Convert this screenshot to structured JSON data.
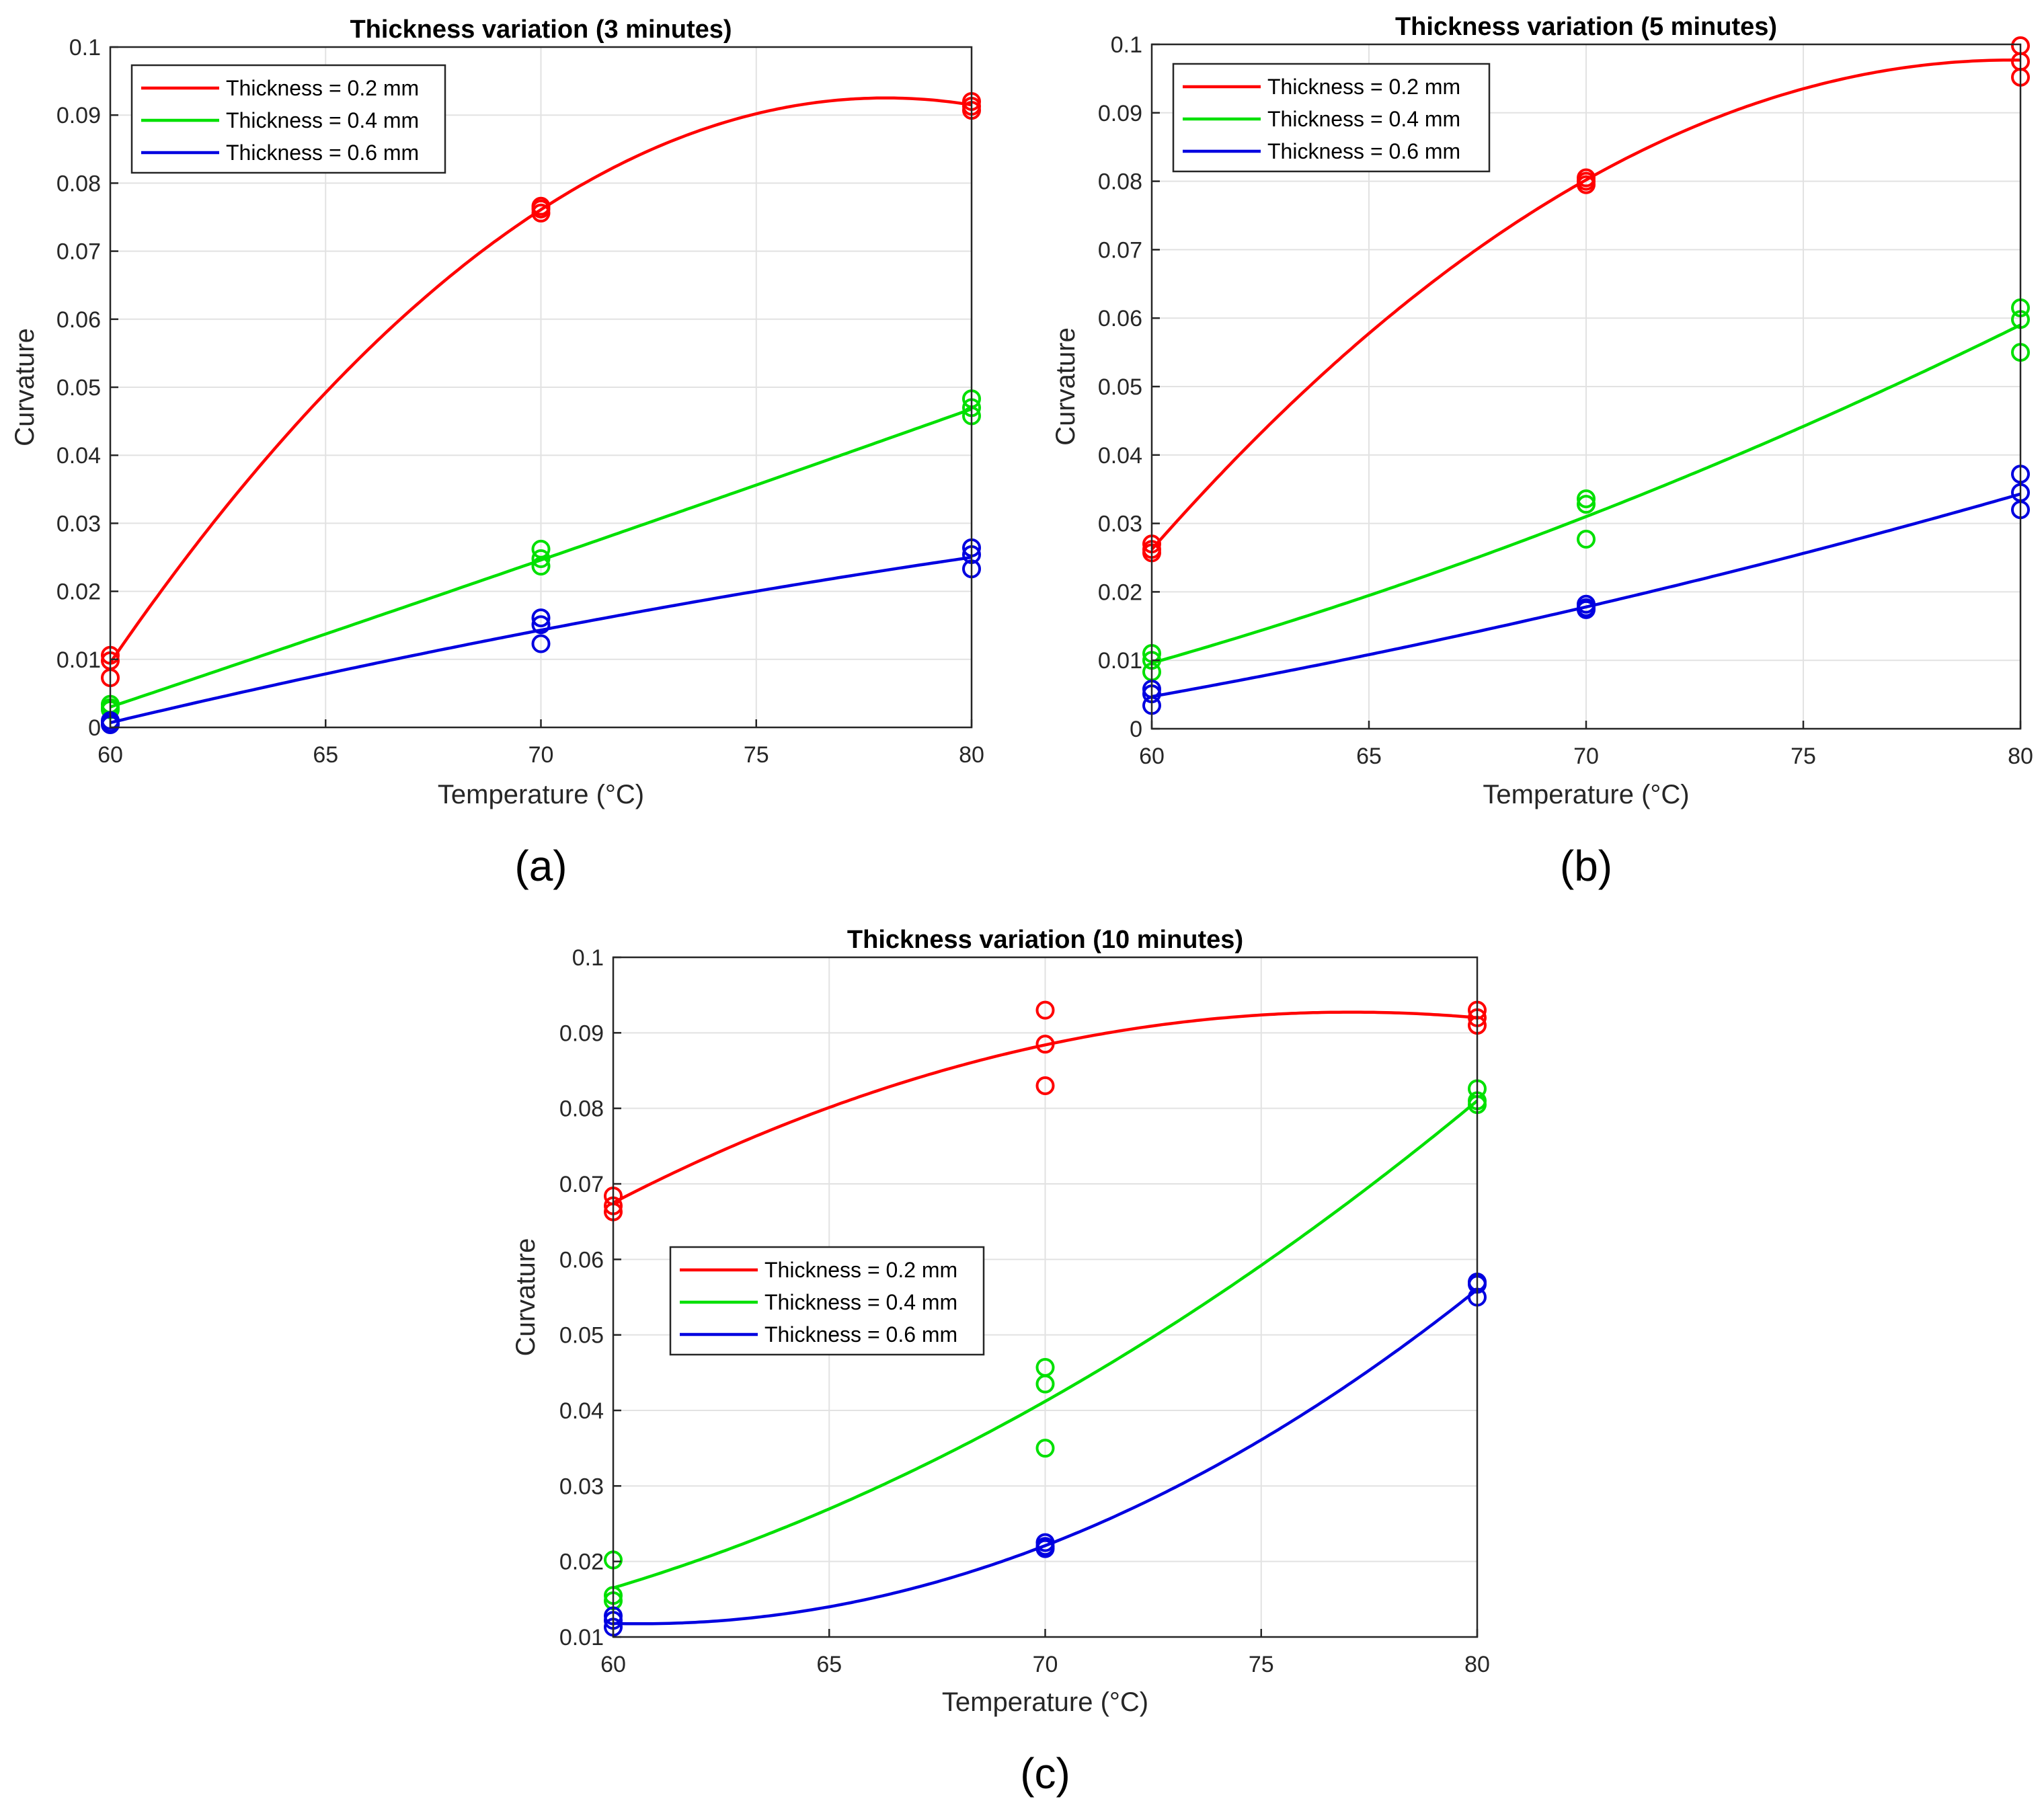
{
  "figure": {
    "panels": [
      "(a)",
      "(b)",
      "(c)"
    ]
  },
  "colors": {
    "t02": "#ff0000",
    "t04": "#00e000",
    "t06": "#0000e0",
    "grid": "#e2e2e2",
    "axis": "#262626"
  },
  "chart_data": [
    {
      "type": "line",
      "panel": "(a)",
      "title": "Thickness variation (3 minutes)",
      "xlabel": "Temperature (°C)",
      "ylabel": "Curvature",
      "xlim": [
        60,
        80
      ],
      "ylim": [
        0,
        0.1
      ],
      "xticks": [
        60,
        65,
        70,
        75,
        80
      ],
      "yticks": [
        0,
        0.01,
        0.02,
        0.03,
        0.04,
        0.05,
        0.06,
        0.07,
        0.08,
        0.09,
        0.1
      ],
      "ytick_labels": [
        "0",
        "0.01",
        "0.02",
        "0.03",
        "0.04",
        "0.05",
        "0.06",
        "0.07",
        "0.08",
        "0.09",
        "0.1"
      ],
      "grid": true,
      "legend_position": "top-left",
      "series": [
        {
          "name": "Thickness = 0.2 mm",
          "color": "#ff0000",
          "fit_x": [
            60,
            70,
            80
          ],
          "fit_y": [
            0.0095,
            0.0761,
            0.0915
          ],
          "points": [
            [
              60,
              0.0106
            ],
            [
              60,
              0.0098
            ],
            [
              60,
              0.0073
            ],
            [
              70,
              0.0766
            ],
            [
              70,
              0.0762
            ],
            [
              70,
              0.0756
            ],
            [
              80,
              0.092
            ],
            [
              80,
              0.0913
            ],
            [
              80,
              0.0907
            ]
          ]
        },
        {
          "name": "Thickness = 0.4 mm",
          "color": "#00e000",
          "fit_x": [
            60,
            70,
            80
          ],
          "fit_y": [
            0.003,
            0.0246,
            0.0468
          ],
          "points": [
            [
              60,
              0.0034
            ],
            [
              60,
              0.0029
            ],
            [
              60,
              0.0026
            ],
            [
              70,
              0.0262
            ],
            [
              70,
              0.0248
            ],
            [
              70,
              0.0237
            ],
            [
              80,
              0.0483
            ],
            [
              80,
              0.047
            ],
            [
              80,
              0.0458
            ]
          ]
        },
        {
          "name": "Thickness = 0.6 mm",
          "color": "#0000e0",
          "fit_x": [
            60,
            70,
            80
          ],
          "fit_y": [
            0.0007,
            0.0143,
            0.025
          ],
          "points": [
            [
              60,
              0.001
            ],
            [
              60,
              0.0006
            ],
            [
              60,
              0.0004
            ],
            [
              70,
              0.0161
            ],
            [
              70,
              0.0151
            ],
            [
              70,
              0.0123
            ],
            [
              80,
              0.0264
            ],
            [
              80,
              0.0254
            ],
            [
              80,
              0.0233
            ]
          ]
        }
      ]
    },
    {
      "type": "line",
      "panel": "(b)",
      "title": "Thickness variation (5 minutes)",
      "xlabel": "Temperature (°C)",
      "ylabel": "Curvature",
      "xlim": [
        60,
        80
      ],
      "ylim": [
        0,
        0.1
      ],
      "xticks": [
        60,
        65,
        70,
        75,
        80
      ],
      "yticks": [
        0,
        0.01,
        0.02,
        0.03,
        0.04,
        0.05,
        0.06,
        0.07,
        0.08,
        0.09,
        0.1
      ],
      "ytick_labels": [
        "0",
        "0.01",
        "0.02",
        "0.03",
        "0.04",
        "0.05",
        "0.06",
        "0.07",
        "0.08",
        "0.09",
        "0.1"
      ],
      "grid": true,
      "legend_position": "top-left",
      "series": [
        {
          "name": "Thickness = 0.2 mm",
          "color": "#ff0000",
          "fit_x": [
            60,
            70,
            80
          ],
          "fit_y": [
            0.0262,
            0.0802,
            0.0977
          ],
          "points": [
            [
              60,
              0.027
            ],
            [
              60,
              0.0262
            ],
            [
              60,
              0.0257
            ],
            [
              70,
              0.0805
            ],
            [
              70,
              0.08
            ],
            [
              70,
              0.0795
            ],
            [
              80,
              0.0998
            ],
            [
              80,
              0.0975
            ],
            [
              80,
              0.0952
            ]
          ]
        },
        {
          "name": "Thickness = 0.4 mm",
          "color": "#00e000",
          "fit_x": [
            60,
            70,
            80
          ],
          "fit_y": [
            0.0096,
            0.031,
            0.059
          ],
          "points": [
            [
              60,
              0.011
            ],
            [
              60,
              0.01
            ],
            [
              60,
              0.0083
            ],
            [
              70,
              0.0336
            ],
            [
              70,
              0.0328
            ],
            [
              70,
              0.0277
            ],
            [
              80,
              0.0615
            ],
            [
              80,
              0.0598
            ],
            [
              80,
              0.055
            ]
          ]
        },
        {
          "name": "Thickness = 0.6 mm",
          "color": "#0000e0",
          "fit_x": [
            60,
            70,
            80
          ],
          "fit_y": [
            0.0047,
            0.0178,
            0.0343
          ],
          "points": [
            [
              60,
              0.0058
            ],
            [
              60,
              0.0051
            ],
            [
              60,
              0.0034
            ],
            [
              70,
              0.0182
            ],
            [
              70,
              0.0177
            ],
            [
              70,
              0.0174
            ],
            [
              80,
              0.0372
            ],
            [
              80,
              0.0345
            ],
            [
              80,
              0.032
            ]
          ]
        }
      ]
    },
    {
      "type": "line",
      "panel": "(c)",
      "title": "Thickness variation (10 minutes)",
      "xlabel": "Temperature (°C)",
      "ylabel": "Curvature",
      "xlim": [
        60,
        80
      ],
      "ylim": [
        0.01,
        0.1
      ],
      "xticks": [
        60,
        65,
        70,
        75,
        80
      ],
      "yticks": [
        0.01,
        0.02,
        0.03,
        0.04,
        0.05,
        0.06,
        0.07,
        0.08,
        0.09,
        0.1
      ],
      "ytick_labels": [
        "0.01",
        "0.02",
        "0.03",
        "0.04",
        "0.05",
        "0.06",
        "0.07",
        "0.08",
        "0.09",
        "0.1"
      ],
      "grid": true,
      "legend_position": "middle-left",
      "series": [
        {
          "name": "Thickness = 0.2 mm",
          "color": "#ff0000",
          "fit_x": [
            60,
            70,
            80
          ],
          "fit_y": [
            0.0675,
            0.0884,
            0.092
          ],
          "points": [
            [
              60,
              0.0684
            ],
            [
              60,
              0.0671
            ],
            [
              60,
              0.0663
            ],
            [
              70,
              0.093
            ],
            [
              70,
              0.0885
            ],
            [
              70,
              0.083
            ],
            [
              80,
              0.093
            ],
            [
              80,
              0.092
            ],
            [
              80,
              0.091
            ]
          ]
        },
        {
          "name": "Thickness = 0.4 mm",
          "color": "#00e000",
          "fit_x": [
            60,
            70,
            80
          ],
          "fit_y": [
            0.0165,
            0.0412,
            0.081
          ],
          "points": [
            [
              60,
              0.0202
            ],
            [
              60,
              0.0155
            ],
            [
              60,
              0.0148
            ],
            [
              70,
              0.0457
            ],
            [
              70,
              0.0435
            ],
            [
              70,
              0.035
            ],
            [
              80,
              0.0826
            ],
            [
              80,
              0.081
            ],
            [
              80,
              0.0805
            ]
          ]
        },
        {
          "name": "Thickness = 0.6 mm",
          "color": "#0000e0",
          "fit_x": [
            60,
            70,
            80
          ],
          "fit_y": [
            0.0118,
            0.0221,
            0.056
          ],
          "points": [
            [
              60,
              0.0128
            ],
            [
              60,
              0.0122
            ],
            [
              60,
              0.0113
            ],
            [
              70,
              0.0225
            ],
            [
              70,
              0.022
            ],
            [
              70,
              0.0217
            ],
            [
              80,
              0.057
            ],
            [
              80,
              0.0567
            ],
            [
              80,
              0.055
            ]
          ]
        }
      ]
    }
  ]
}
